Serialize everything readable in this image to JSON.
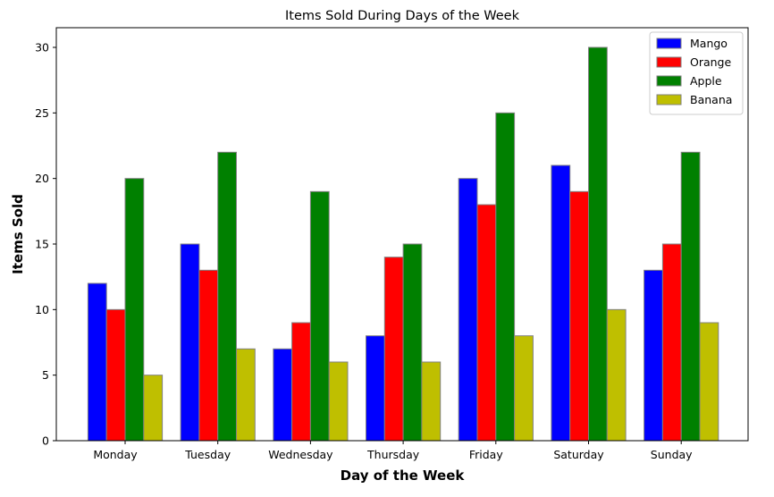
{
  "chart_data": {
    "type": "bar",
    "title": "Items Sold During Days of the Week",
    "xlabel": "Day of the Week",
    "ylabel": "Items Sold",
    "categories": [
      "Monday",
      "Tuesday",
      "Wednesday",
      "Thursday",
      "Friday",
      "Saturday",
      "Sunday"
    ],
    "series": [
      {
        "name": "Mango",
        "color": "#0000ff",
        "values": [
          12,
          15,
          7,
          8,
          20,
          21,
          13
        ]
      },
      {
        "name": "Orange",
        "color": "#ff0000",
        "values": [
          10,
          13,
          9,
          14,
          18,
          19,
          15
        ]
      },
      {
        "name": "Apple",
        "color": "#008000",
        "values": [
          20,
          22,
          19,
          15,
          25,
          30,
          22
        ]
      },
      {
        "name": "Banana",
        "color": "#bfbf00",
        "values": [
          5,
          7,
          6,
          6,
          8,
          10,
          9
        ]
      }
    ],
    "ylim": [
      0,
      31.5
    ],
    "yticks": [
      0,
      5,
      10,
      15,
      20,
      25,
      30
    ],
    "legend_position": "top-right",
    "grid": false,
    "bar_edge_color": "#808080"
  }
}
